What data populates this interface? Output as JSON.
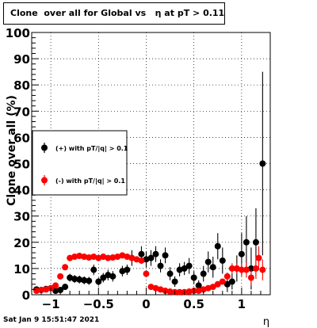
{
  "title": "Clone  over all for Global vs   η at pT > 0.11",
  "timestamp": "Sat Jan  9 15:51:47 2021",
  "chart_data": {
    "type": "scatter",
    "title": "Clone  over all for Global vs   η at pT > 0.11",
    "xlabel": "η",
    "ylabel": "Clone  over all (%)",
    "xlim": [
      -1.2,
      1.3
    ],
    "ylim": [
      0,
      100
    ],
    "x_ticks": [
      -1,
      -0.5,
      0,
      0.5,
      1
    ],
    "x_tick_labels": [
      "−1",
      "−0.5",
      "0",
      "0.5",
      "1"
    ],
    "y_ticks": [
      0,
      10,
      20,
      30,
      40,
      50,
      60,
      70,
      80,
      90,
      100
    ],
    "y_tick_labels": [
      "0",
      "10",
      "20",
      "30",
      "40",
      "50",
      "60",
      "70",
      "80",
      "90",
      "100"
    ],
    "grid": true,
    "legend": "left",
    "series": [
      {
        "name": "(+) with pT/|q| > 0.1",
        "color": "#000000",
        "points": [
          {
            "x": -1.15,
            "y": 2.0,
            "err": 1.0
          },
          {
            "x": -1.1,
            "y": 1.8,
            "err": 1.0
          },
          {
            "x": -1.05,
            "y": 2.2,
            "err": 1.0
          },
          {
            "x": -1.0,
            "y": 2.5,
            "err": 1.0
          },
          {
            "x": -0.95,
            "y": 1.5,
            "err": 1.0
          },
          {
            "x": -0.9,
            "y": 1.8,
            "err": 1.0
          },
          {
            "x": -0.85,
            "y": 3.0,
            "err": 1.2
          },
          {
            "x": -0.8,
            "y": 6.5,
            "err": 1.5
          },
          {
            "x": -0.75,
            "y": 6.0,
            "err": 1.5
          },
          {
            "x": -0.7,
            "y": 5.8,
            "err": 1.5
          },
          {
            "x": -0.65,
            "y": 5.5,
            "err": 1.5
          },
          {
            "x": -0.6,
            "y": 5.3,
            "err": 1.5
          },
          {
            "x": -0.55,
            "y": 9.5,
            "err": 2.0
          },
          {
            "x": -0.5,
            "y": 5.0,
            "err": 1.5
          },
          {
            "x": -0.45,
            "y": 6.5,
            "err": 1.8
          },
          {
            "x": -0.4,
            "y": 7.5,
            "err": 2.0
          },
          {
            "x": -0.35,
            "y": 7.0,
            "err": 2.0
          },
          {
            "x": -0.25,
            "y": 9.0,
            "err": 2.0
          },
          {
            "x": -0.2,
            "y": 9.5,
            "err": 2.0
          },
          {
            "x": -0.15,
            "y": 14.0,
            "err": 3.0
          },
          {
            "x": -0.05,
            "y": 15.5,
            "err": 3.0
          },
          {
            "x": 0.0,
            "y": 13.5,
            "err": 3.0
          },
          {
            "x": 0.05,
            "y": 14.0,
            "err": 3.0
          },
          {
            "x": 0.1,
            "y": 15.5,
            "err": 3.0
          },
          {
            "x": 0.15,
            "y": 11.0,
            "err": 2.5
          },
          {
            "x": 0.2,
            "y": 15.0,
            "err": 3.0
          },
          {
            "x": 0.25,
            "y": 8.0,
            "err": 2.5
          },
          {
            "x": 0.3,
            "y": 5.0,
            "err": 2.0
          },
          {
            "x": 0.35,
            "y": 9.5,
            "err": 2.5
          },
          {
            "x": 0.4,
            "y": 10.0,
            "err": 2.5
          },
          {
            "x": 0.45,
            "y": 11.0,
            "err": 3.0
          },
          {
            "x": 0.5,
            "y": 6.5,
            "err": 2.5
          },
          {
            "x": 0.55,
            "y": 3.5,
            "err": 2.0
          },
          {
            "x": 0.6,
            "y": 8.0,
            "err": 3.0
          },
          {
            "x": 0.65,
            "y": 12.5,
            "err": 4.0
          },
          {
            "x": 0.7,
            "y": 10.5,
            "err": 4.0
          },
          {
            "x": 0.75,
            "y": 18.5,
            "err": 5.0
          },
          {
            "x": 0.8,
            "y": 13.0,
            "err": 5.0
          },
          {
            "x": 0.85,
            "y": 4.0,
            "err": 3.0
          },
          {
            "x": 0.9,
            "y": 5.0,
            "err": 3.0
          },
          {
            "x": 0.95,
            "y": 10.0,
            "err": 5.0
          },
          {
            "x": 1.0,
            "y": 15.5,
            "err": 8.0
          },
          {
            "x": 1.05,
            "y": 20.0,
            "err": 10.0
          },
          {
            "x": 1.1,
            "y": 10.0,
            "err": 8.0
          },
          {
            "x": 1.15,
            "y": 20.0,
            "err": 13.0
          },
          {
            "x": 1.22,
            "y": 50.0,
            "err": 35.0
          }
        ]
      },
      {
        "name": "(-) with pT/|q| > 0.1",
        "color": "#ff0000",
        "points": [
          {
            "x": -1.15,
            "y": 1.5,
            "err": 0.5
          },
          {
            "x": -1.1,
            "y": 1.8,
            "err": 0.5
          },
          {
            "x": -1.05,
            "y": 2.0,
            "err": 0.5
          },
          {
            "x": -1.0,
            "y": 2.5,
            "err": 0.6
          },
          {
            "x": -0.95,
            "y": 3.5,
            "err": 0.8
          },
          {
            "x": -0.9,
            "y": 7.0,
            "err": 1.0
          },
          {
            "x": -0.85,
            "y": 10.5,
            "err": 1.0
          },
          {
            "x": -0.8,
            "y": 14.0,
            "err": 1.0
          },
          {
            "x": -0.75,
            "y": 14.5,
            "err": 1.0
          },
          {
            "x": -0.7,
            "y": 14.8,
            "err": 1.0
          },
          {
            "x": -0.65,
            "y": 14.5,
            "err": 1.0
          },
          {
            "x": -0.6,
            "y": 14.2,
            "err": 1.0
          },
          {
            "x": -0.55,
            "y": 14.5,
            "err": 1.0
          },
          {
            "x": -0.5,
            "y": 14.0,
            "err": 1.0
          },
          {
            "x": -0.45,
            "y": 14.5,
            "err": 1.0
          },
          {
            "x": -0.4,
            "y": 14.0,
            "err": 1.0
          },
          {
            "x": -0.35,
            "y": 14.2,
            "err": 1.0
          },
          {
            "x": -0.3,
            "y": 14.5,
            "err": 1.0
          },
          {
            "x": -0.25,
            "y": 15.0,
            "err": 1.0
          },
          {
            "x": -0.2,
            "y": 14.5,
            "err": 1.0
          },
          {
            "x": -0.15,
            "y": 14.0,
            "err": 1.0
          },
          {
            "x": -0.1,
            "y": 13.5,
            "err": 1.0
          },
          {
            "x": -0.05,
            "y": 13.0,
            "err": 1.0
          },
          {
            "x": 0.0,
            "y": 8.0,
            "err": 1.0
          },
          {
            "x": 0.05,
            "y": 3.0,
            "err": 0.8
          },
          {
            "x": 0.1,
            "y": 2.5,
            "err": 0.8
          },
          {
            "x": 0.15,
            "y": 2.0,
            "err": 0.6
          },
          {
            "x": 0.2,
            "y": 1.5,
            "err": 0.5
          },
          {
            "x": 0.25,
            "y": 1.2,
            "err": 0.5
          },
          {
            "x": 0.3,
            "y": 1.0,
            "err": 0.5
          },
          {
            "x": 0.35,
            "y": 1.0,
            "err": 0.5
          },
          {
            "x": 0.4,
            "y": 1.0,
            "err": 0.5
          },
          {
            "x": 0.45,
            "y": 1.2,
            "err": 0.5
          },
          {
            "x": 0.5,
            "y": 1.5,
            "err": 0.5
          },
          {
            "x": 0.55,
            "y": 1.5,
            "err": 0.5
          },
          {
            "x": 0.6,
            "y": 2.0,
            "err": 0.6
          },
          {
            "x": 0.65,
            "y": 2.5,
            "err": 0.8
          },
          {
            "x": 0.7,
            "y": 3.0,
            "err": 0.8
          },
          {
            "x": 0.75,
            "y": 4.0,
            "err": 1.0
          },
          {
            "x": 0.8,
            "y": 5.0,
            "err": 1.0
          },
          {
            "x": 0.85,
            "y": 7.0,
            "err": 1.5
          },
          {
            "x": 0.9,
            "y": 10.0,
            "err": 2.0
          },
          {
            "x": 0.95,
            "y": 10.0,
            "err": 2.0
          },
          {
            "x": 1.0,
            "y": 9.5,
            "err": 2.5
          },
          {
            "x": 1.05,
            "y": 9.5,
            "err": 3.0
          },
          {
            "x": 1.1,
            "y": 6.5,
            "err": 3.0
          },
          {
            "x": 1.15,
            "y": 10.0,
            "err": 4.0
          },
          {
            "x": 1.18,
            "y": 14.0,
            "err": 4.5
          },
          {
            "x": 1.22,
            "y": 9.5,
            "err": 4.0
          }
        ]
      }
    ]
  }
}
